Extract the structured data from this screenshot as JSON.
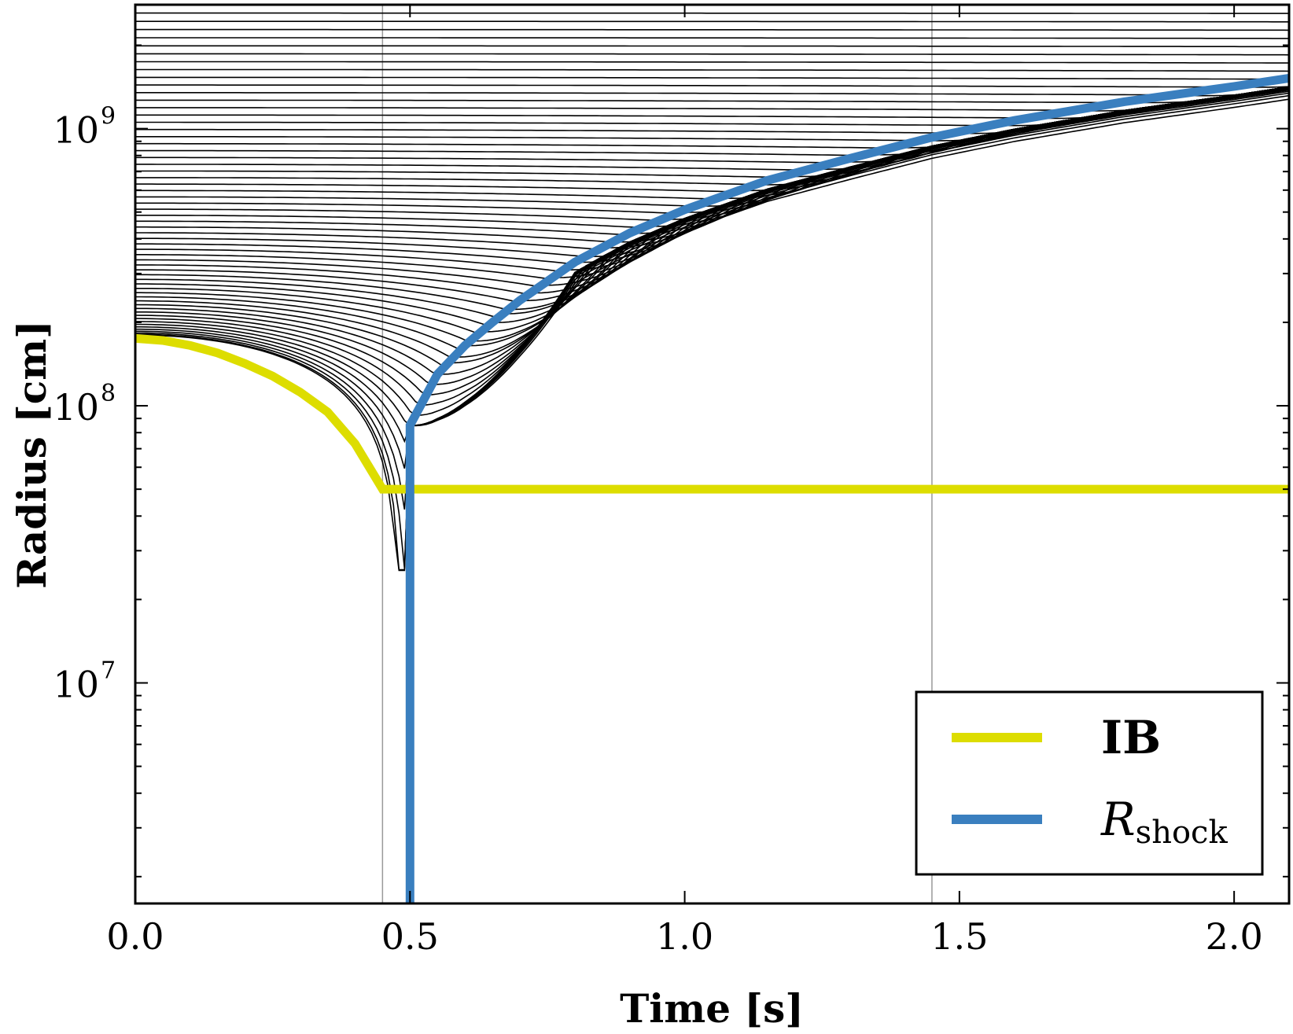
{
  "chart_data": {
    "type": "line",
    "xlabel": "Time [s]",
    "ylabel": "Radius [cm]",
    "xlim": [
      0.0,
      2.1
    ],
    "ylim": [
      1600000.0,
      2800000000.0
    ],
    "yscale": "log",
    "x_ticks": [
      "0.0",
      "0.5",
      "1.0",
      "1.5",
      "2.0"
    ],
    "x_tick_values": [
      0.0,
      0.5,
      1.0,
      1.5,
      2.0
    ],
    "y_ticks": [
      {
        "value": 10000000.0,
        "base": "10",
        "exp": "7"
      },
      {
        "value": 100000000.0,
        "base": "10",
        "exp": "8"
      },
      {
        "value": 1000000000.0,
        "base": "10",
        "exp": "9"
      }
    ],
    "vertical_reference_lines": [
      0.45,
      1.45
    ],
    "colors": {
      "ib": "#dddd00",
      "shock": "#3a7fbf",
      "mass_shells": "#000000",
      "reference": "#999999"
    },
    "series": [
      {
        "name": "IB",
        "x": [
          0.0,
          0.05,
          0.1,
          0.15,
          0.2,
          0.25,
          0.3,
          0.35,
          0.4,
          0.45,
          0.5,
          1.0,
          1.5,
          2.0,
          2.1
        ],
        "values": [
          175000000.0,
          172000000.0,
          165000000.0,
          155000000.0,
          142000000.0,
          128000000.0,
          112000000.0,
          95000000.0,
          73000000.0,
          50000000.0,
          50000000.0,
          50000000.0,
          50000000.0,
          50000000.0,
          50000000.0
        ]
      },
      {
        "name": "R_shock",
        "x": [
          0.5,
          0.5,
          0.55,
          0.6,
          0.65,
          0.7,
          0.8,
          0.9,
          1.0,
          1.15,
          1.3,
          1.45,
          1.6,
          1.8,
          2.0,
          2.1
        ],
        "values": [
          1600000.0,
          85000000.0,
          130000000.0,
          165000000.0,
          200000000.0,
          240000000.0,
          330000000.0,
          420000000.0,
          510000000.0,
          650000000.0,
          780000000.0,
          930000000.0,
          1070000000.0,
          1250000000.0,
          1420000000.0,
          1520000000.0
        ]
      }
    ],
    "mass_shells": {
      "count": 60,
      "r0_min": 180000000.0,
      "r0_max": 2800000000.0,
      "note": "Lagrangian mass shell trajectories (black lines) falling inward until crossing the shock, then moving outward"
    },
    "legend": {
      "position": "lower-right",
      "entries": [
        {
          "label": "IB",
          "series": "IB"
        },
        {
          "label_main": "R",
          "label_sub": "shock",
          "series": "R_shock"
        }
      ]
    }
  }
}
